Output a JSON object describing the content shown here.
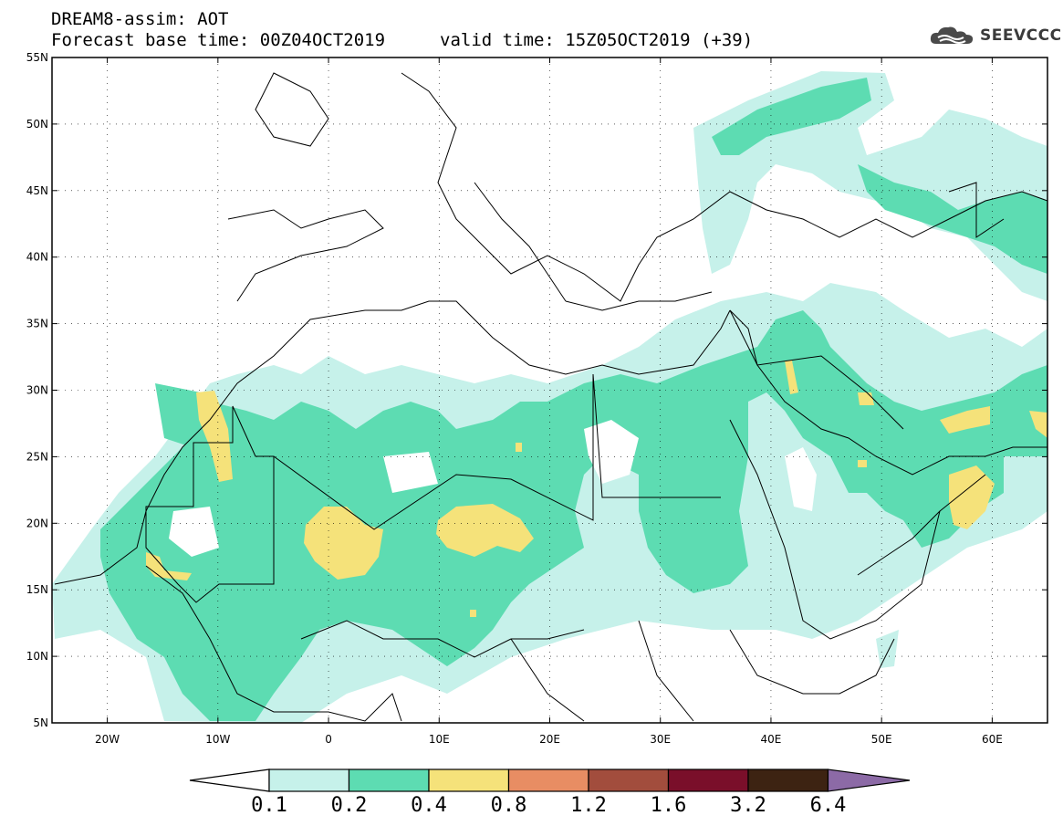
{
  "header": {
    "title": "DREAM8-assim: AOT",
    "base_time": "Forecast base time: 00Z04OCT2019",
    "valid_time": "valid time: 15Z05OCT2019 (+39)",
    "logo_text": "SEEVCCC"
  },
  "map": {
    "lon_range": [
      -25,
      65
    ],
    "lat_range": [
      5,
      55
    ],
    "lat_ticks": [
      {
        "value": 55,
        "label": "55N"
      },
      {
        "value": 50,
        "label": "50N"
      },
      {
        "value": 45,
        "label": "45N"
      },
      {
        "value": 40,
        "label": "40N"
      },
      {
        "value": 35,
        "label": "35N"
      },
      {
        "value": 30,
        "label": "30N"
      },
      {
        "value": 25,
        "label": "25N"
      },
      {
        "value": 20,
        "label": "20N"
      },
      {
        "value": 15,
        "label": "15N"
      },
      {
        "value": 10,
        "label": "10N"
      },
      {
        "value": 5,
        "label": "5N"
      }
    ],
    "lon_ticks": [
      {
        "value": -20,
        "label": "20W"
      },
      {
        "value": -10,
        "label": "10W"
      },
      {
        "value": 0,
        "label": "0"
      },
      {
        "value": 10,
        "label": "10E"
      },
      {
        "value": 20,
        "label": "20E"
      },
      {
        "value": 30,
        "label": "30E"
      },
      {
        "value": 40,
        "label": "40E"
      },
      {
        "value": 50,
        "label": "50E"
      },
      {
        "value": 60,
        "label": "60E"
      }
    ]
  },
  "colorbar": {
    "levels": [
      "0.1",
      "0.2",
      "0.4",
      "0.8",
      "1.2",
      "1.6",
      "3.2",
      "6.4"
    ],
    "colors": [
      "#ffffff",
      "#c6f1ea",
      "#5ddcb2",
      "#f5e27a",
      "#e88d63",
      "#a24d3d",
      "#7a0f2a",
      "#3d2312",
      "#8c6aa6"
    ]
  }
}
